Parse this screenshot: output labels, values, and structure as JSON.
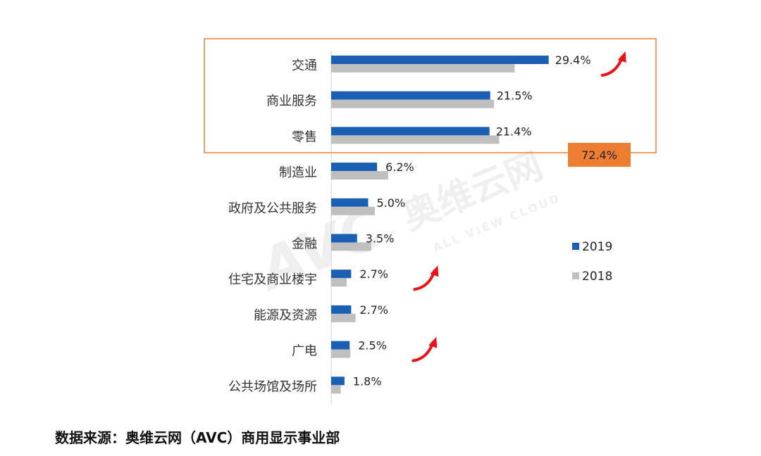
{
  "chart_data": {
    "type": "bar",
    "orientation": "horizontal",
    "categories": [
      "交通",
      "商业服务",
      "零售",
      "制造业",
      "政府及公共服务",
      "金融",
      "住宅及商业楼宇",
      "能源及资源",
      "广电",
      "公共场馆及场所"
    ],
    "series": [
      {
        "name": "2019",
        "color": "#1a5fb4",
        "values": [
          29.4,
          21.5,
          21.4,
          6.2,
          5.0,
          3.5,
          2.7,
          2.7,
          2.5,
          1.8
        ]
      },
      {
        "name": "2018",
        "color": "#bfbfbf",
        "values": [
          24.8,
          22.0,
          22.7,
          7.7,
          5.9,
          5.4,
          2.1,
          3.3,
          2.6,
          1.3
        ]
      }
    ],
    "data_labels": [
      "29.4%",
      "21.5%",
      "21.4%",
      "6.2%",
      "5.0%",
      "3.5%",
      "2.7%",
      "2.7%",
      "2.5%",
      "1.8%"
    ],
    "xlim": [
      0,
      30
    ],
    "legend": {
      "placement": "right",
      "entries": [
        "2019",
        "2018"
      ]
    },
    "grid": false,
    "highlight": {
      "categories": [
        "交通",
        "商业服务",
        "零售"
      ],
      "label": "72.4%",
      "color": "#ed7d31"
    },
    "trend_arrows": {
      "categories": [
        "交通",
        "住宅及商业楼宇",
        "广电"
      ],
      "color": "#e8141b"
    }
  },
  "watermark": {
    "logo": "AVC",
    "cn": "奥维云网",
    "en": "ALL VIEW CLOUD"
  },
  "footer": "数据来源：奥维云网（AVC）商用显示事业部"
}
